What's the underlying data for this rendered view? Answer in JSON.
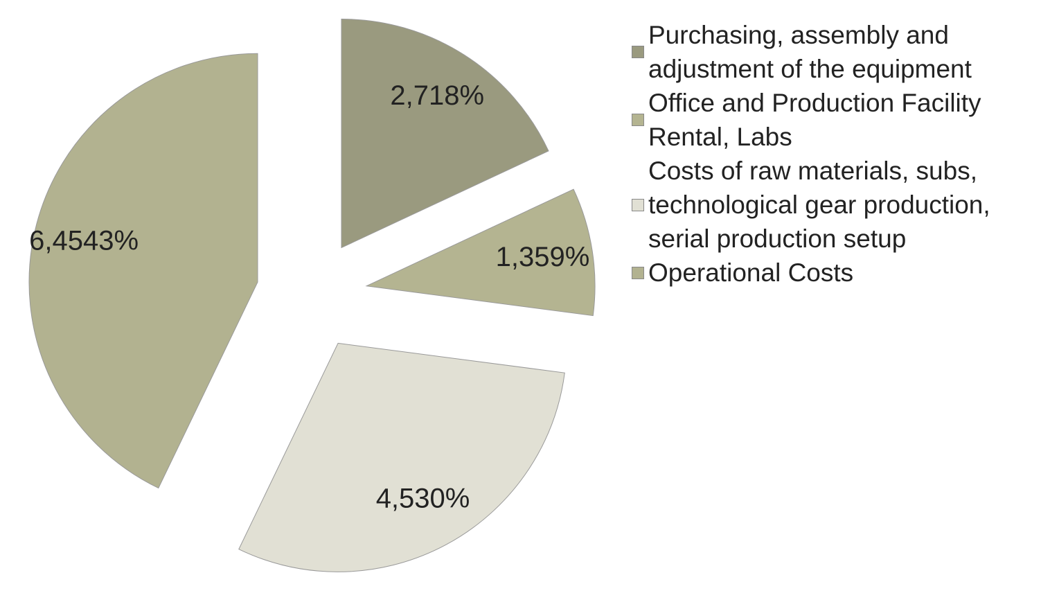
{
  "chart_data": {
    "type": "pie",
    "categories": [
      "Purchasing, assembly and adjustment of the equipment",
      "Office and Production Facility Rental, Labs",
      "Costs of raw materials, subs, technological gear production, serial production setup",
      "Operational Costs"
    ],
    "values": [
      2.718,
      1.359,
      4.53,
      6.4543
    ],
    "value_labels": [
      "2,718%",
      "1,359%",
      "4,530%",
      "6,4543%"
    ],
    "colors": [
      "#9a9a7f",
      "#b4b491",
      "#e1e0d4",
      "#b2b290"
    ]
  }
}
